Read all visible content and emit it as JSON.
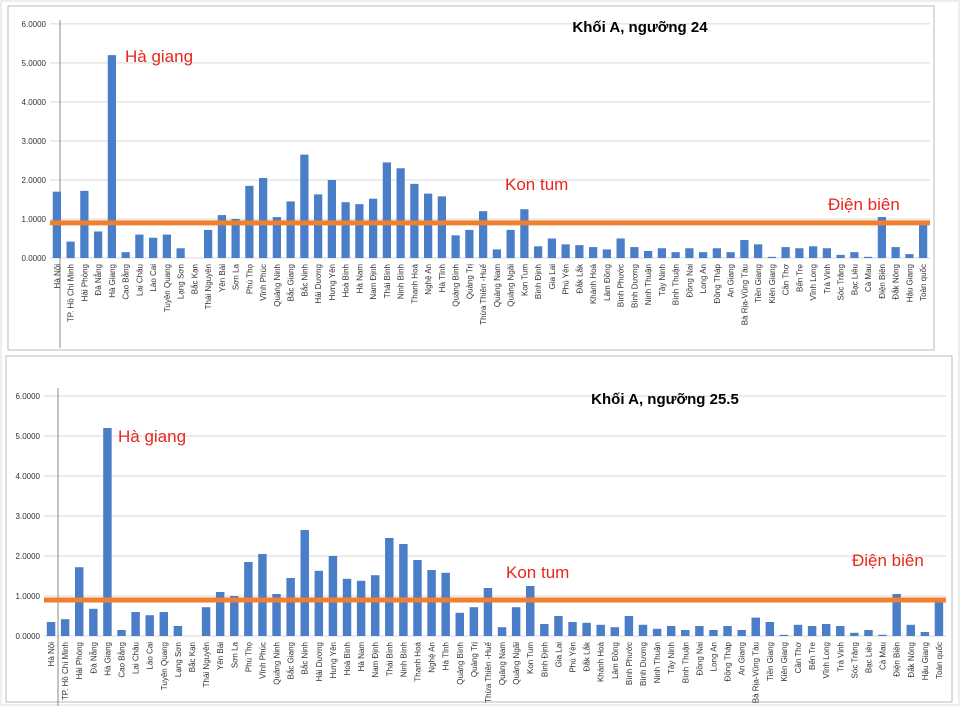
{
  "chart_data": [
    {
      "type": "bar",
      "title": "Khối A, ngưỡng 24",
      "categories": [
        "Hà Nội",
        "TP. Hồ Chí Minh",
        "Hải Phòng",
        "Đà Nẵng",
        "Hà Giang",
        "Cao Bằng",
        "Lai Châu",
        "Lào Cai",
        "Tuyên Quang",
        "Lạng Sơn",
        "Bắc Kạn",
        "Thái Nguyên",
        "Yên Bái",
        "Sơn La",
        "Phú Thọ",
        "Vĩnh Phúc",
        "Quảng Ninh",
        "Bắc Giang",
        "Bắc Ninh",
        "Hải Dương",
        "Hưng Yên",
        "Hoà Bình",
        "Hà Nam",
        "Nam Định",
        "Thái Bình",
        "Ninh Bình",
        "Thanh Hoá",
        "Nghệ An",
        "Hà Tĩnh",
        "Quảng Bình",
        "Quảng Trị",
        "Thừa Thiên -Huế",
        "Quảng Nam",
        "Quảng Ngãi",
        "Kon Tum",
        "Bình Định",
        "Gia Lai",
        "Phú Yên",
        "Đắk Lắk",
        "Khánh Hoà",
        "Lâm Đồng",
        "Bình Phước",
        "Bình Dương",
        "Ninh Thuận",
        "Tây Ninh",
        "Bình Thuận",
        "Đồng Nai",
        "Long An",
        "Đồng Tháp",
        "An Giang",
        "Bà Rịa-Vũng Tàu",
        "Tiền Giang",
        "Kiên Giang",
        "Cần Thơ",
        "Bến Tre",
        "Vĩnh Long",
        "Trà Vinh",
        "Sóc Trăng",
        "Bạc Liêu",
        "Cà Mau",
        "Điện Biên",
        "Đắk Nông",
        "Hậu Giang",
        "Toàn quốc"
      ],
      "values": [
        1.7,
        0.42,
        1.72,
        0.68,
        5.2,
        0.15,
        0.6,
        0.52,
        0.6,
        0.25,
        0,
        0.72,
        1.1,
        1.0,
        1.85,
        2.05,
        1.05,
        1.45,
        2.65,
        1.63,
        2.0,
        1.43,
        1.38,
        1.52,
        2.45,
        2.3,
        1.9,
        1.65,
        1.58,
        0.58,
        0.72,
        1.2,
        0.22,
        0.72,
        1.25,
        0.3,
        0.5,
        0.35,
        0.33,
        0.28,
        0.22,
        0.5,
        0.28,
        0.18,
        0.25,
        0.15,
        0.25,
        0.15,
        0.25,
        0.15,
        0.46,
        0.35,
        0.03,
        0.28,
        0.25,
        0.3,
        0.25,
        0.08,
        0.15,
        0.03,
        1.05,
        0.28,
        0.1,
        0.9
      ],
      "color": "#4a7ec9",
      "ylim": [
        0,
        6.1
      ],
      "yticks": [
        {
          "value": 0,
          "label": "0.0000"
        },
        {
          "value": 1,
          "label": "1.0000"
        },
        {
          "value": 2,
          "label": "2.0000"
        },
        {
          "value": 3,
          "label": "3.0000"
        },
        {
          "value": 4,
          "label": "4.0000"
        },
        {
          "value": 5,
          "label": "5.0000"
        },
        {
          "value": 6,
          "label": "6.0000"
        }
      ],
      "grid": true,
      "reference_line": {
        "value": 0.9,
        "color": "#f07f2e"
      },
      "annotations": [
        "Hà giang",
        "Kon tum",
        "Điện biên"
      ]
    },
    {
      "type": "bar",
      "title": "Khối A, ngưỡng 25.5",
      "categories": [
        "Hà Nội",
        "TP. Hồ Chí Minh",
        "Hải Phòng",
        "Đà Nẵng",
        "Hà Giang",
        "Cao Bằng",
        "Lai Châu",
        "Lào Cai",
        "Tuyên Quang",
        "Lạng Sơn",
        "Bắc Kạn",
        "Thái Nguyên",
        "Yên Bái",
        "Sơn La",
        "Phú Thọ",
        "Vĩnh Phúc",
        "Quảng Ninh",
        "Bắc Giang",
        "Bắc Ninh",
        "Hải Dương",
        "Hưng Yên",
        "Hoà Bình",
        "Hà Nam",
        "Nam Định",
        "Thái Bình",
        "Ninh Bình",
        "Thanh Hoá",
        "Nghệ An",
        "Hà Tĩnh",
        "Quảng Bình",
        "Quảng Trị",
        "Thừa Thiên -Huế",
        "Quảng Nam",
        "Quảng Ngãi",
        "Kon Tum",
        "Bình Định",
        "Gia Lai",
        "Phú Yên",
        "Đắk Lắk",
        "Khánh Hoà",
        "Lâm Đồng",
        "Bình Phước",
        "Bình Dương",
        "Ninh Thuận",
        "Tây Ninh",
        "Bình Thuận",
        "Đồng Nai",
        "Long An",
        "Đồng Tháp",
        "An Giang",
        "Bà Rịa-Vũng Tàu",
        "Tiền Giang",
        "Kiên Giang",
        "Cần Thơ",
        "Bến Tre",
        "Vĩnh Long",
        "Trà Vinh",
        "Sóc Trăng",
        "Bạc Liêu",
        "Cà Mau",
        "Điện Biên",
        "Đắk Nông",
        "Hậu Giang",
        "Toàn quốc"
      ],
      "values": [
        0.35,
        0.42,
        1.72,
        0.68,
        5.2,
        0.15,
        0.6,
        0.52,
        0.6,
        0.25,
        0,
        0.72,
        1.1,
        1.0,
        1.85,
        2.05,
        1.05,
        1.45,
        2.65,
        1.63,
        2.0,
        1.43,
        1.38,
        1.52,
        2.45,
        2.3,
        1.9,
        1.65,
        1.58,
        0.58,
        0.72,
        1.2,
        0.22,
        0.72,
        1.25,
        0.3,
        0.5,
        0.35,
        0.33,
        0.28,
        0.22,
        0.5,
        0.28,
        0.18,
        0.25,
        0.15,
        0.25,
        0.15,
        0.25,
        0.15,
        0.46,
        0.35,
        0.03,
        0.28,
        0.25,
        0.3,
        0.25,
        0.08,
        0.15,
        0.03,
        1.05,
        0.28,
        0.1,
        0.9
      ],
      "color": "#4a7ec9",
      "ylim": [
        0,
        6.2
      ],
      "yticks": [
        {
          "value": 0,
          "label": "0.0000"
        },
        {
          "value": 1,
          "label": "1.0000"
        },
        {
          "value": 2,
          "label": "2.0000"
        },
        {
          "value": 3,
          "label": "3.0000"
        },
        {
          "value": 4,
          "label": "4.0000"
        },
        {
          "value": 5,
          "label": "5.0000"
        },
        {
          "value": 6,
          "label": "6.0000"
        }
      ],
      "grid": true,
      "reference_line": {
        "value": 0.9,
        "color": "#f07f2e"
      },
      "annotations": [
        "Hà giang",
        "Kon tum",
        "Điện biên"
      ]
    }
  ]
}
